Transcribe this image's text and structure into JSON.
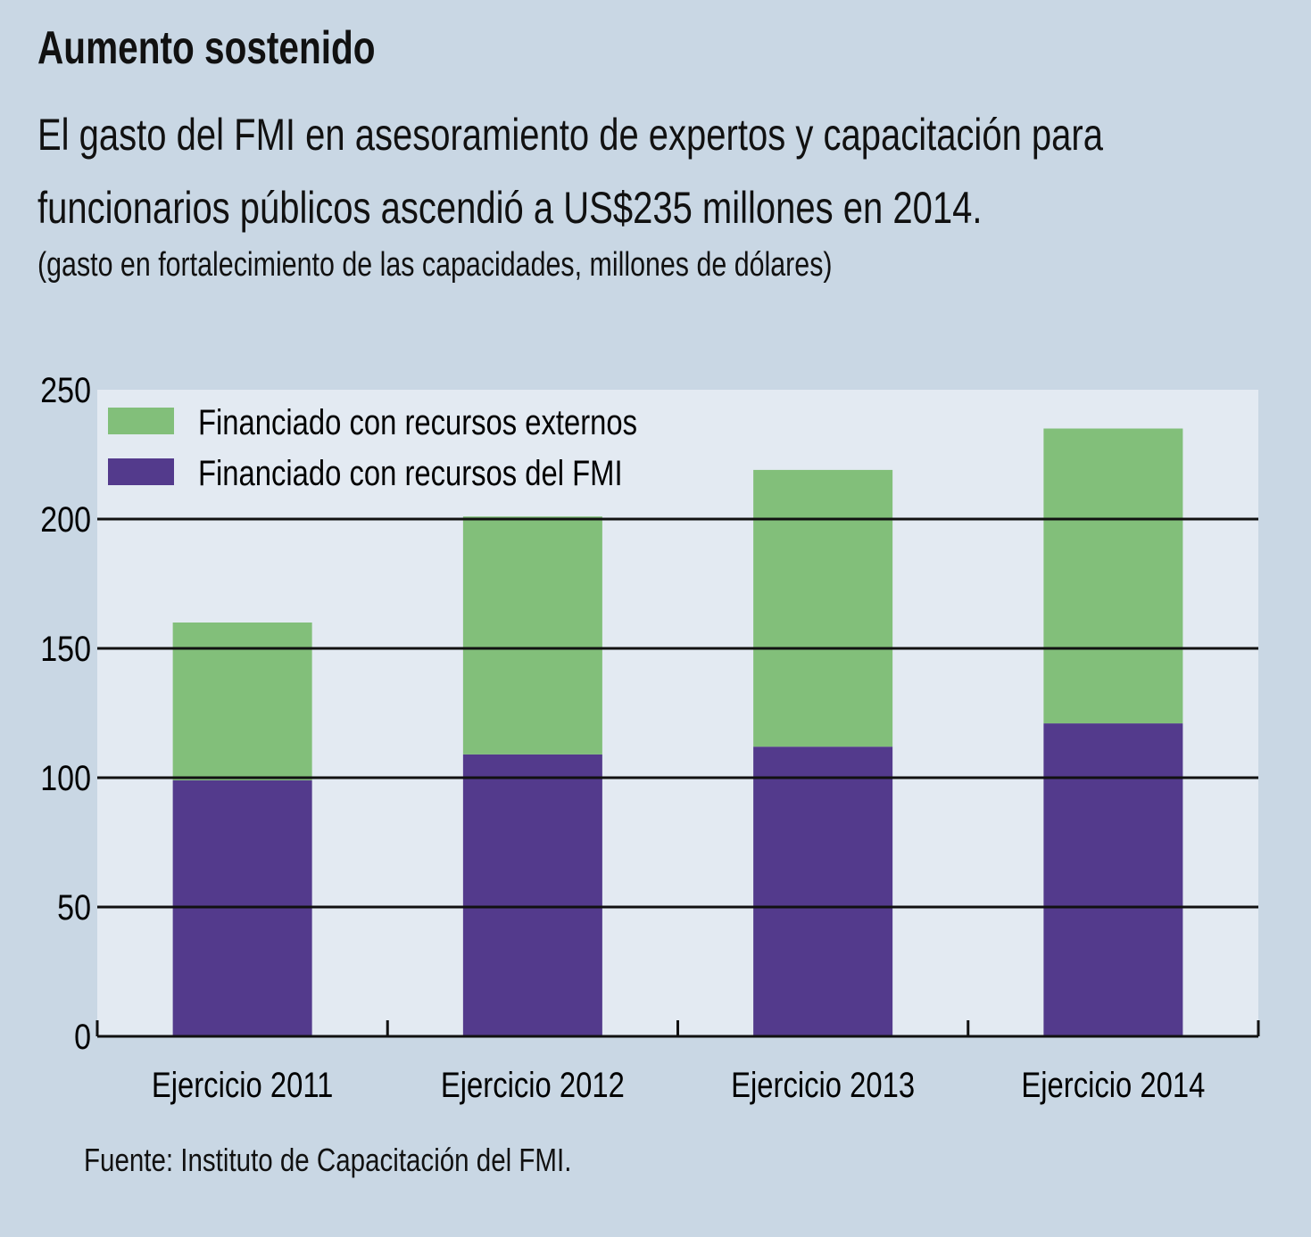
{
  "title": "Aumento sostenido",
  "subtitle_line1": "El gasto del FMI en asesoramiento de expertos y capacitación para",
  "subtitle_line2": "funcionarios públicos ascendió a US$235 millones en 2014.",
  "units": "(gasto en fortalecimiento de las capacidades, millones de dólares)",
  "source": "Fuente: Instituto de Capacitación del FMI.",
  "chart_data": {
    "type": "bar",
    "stacked": true,
    "categories": [
      "Ejercicio 2011",
      "Ejercicio 2012",
      "Ejercicio 2013",
      "Ejercicio 2014"
    ],
    "series": [
      {
        "name": "Financiado con recursos del FMI",
        "values": [
          99,
          109,
          112,
          121
        ],
        "color": "#533a8c"
      },
      {
        "name": "Financiado con recursos externos",
        "values": [
          61,
          92,
          107,
          114
        ],
        "color": "#82bf7a"
      }
    ],
    "ylim": [
      0,
      250
    ],
    "yticks": [
      0,
      50,
      100,
      150,
      200,
      250
    ],
    "grid": true,
    "legend": "top-left",
    "plot_background": "#e3eaf2",
    "page_background": "#c9d7e4"
  }
}
